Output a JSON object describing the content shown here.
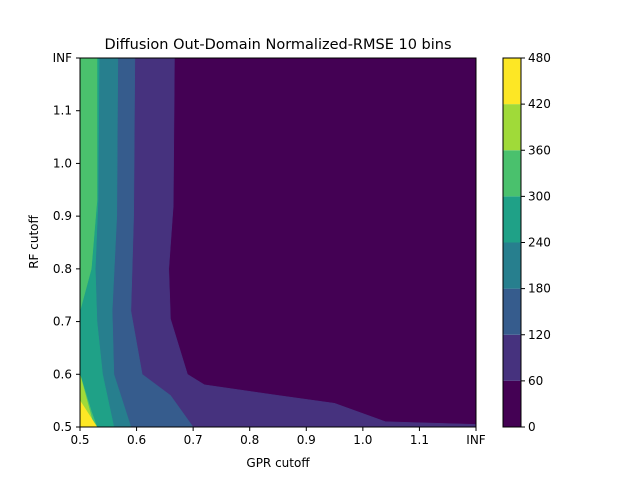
{
  "chart_data": {
    "type": "contourf",
    "title": "Diffusion Out-Domain Normalized-RMSE 10 bins",
    "xlabel": "GPR cutoff",
    "ylabel": "RF cutoff",
    "x_ticks": [
      "0.5",
      "0.6",
      "0.7",
      "0.8",
      "0.9",
      "1.0",
      "1.1",
      "INF"
    ],
    "y_ticks": [
      "0.5",
      "0.6",
      "0.7",
      "0.8",
      "0.9",
      "1.0",
      "1.1",
      "INF"
    ],
    "x_range": [
      0.5,
      1.2
    ],
    "y_range": [
      0.5,
      1.2
    ],
    "levels": [
      0,
      60,
      120,
      180,
      240,
      300,
      360,
      420,
      480
    ],
    "colorbar_ticks": [
      "0",
      "60",
      "120",
      "180",
      "240",
      "300",
      "360",
      "420",
      "480"
    ],
    "level_colors": [
      "#440154",
      "#46327e",
      "#365c8d",
      "#277f8e",
      "#1fa187",
      "#4ac16d",
      "#a0da39",
      "#fde725"
    ],
    "regions": [
      {
        "level_range": [
          0,
          60
        ],
        "boundary": [
          [
            0.955,
            1.2
          ],
          [
            0.955,
            0.905
          ],
          [
            0.92,
            0.8
          ],
          [
            0.938,
            0.7
          ],
          [
            0.98,
            0.635
          ],
          [
            1.1,
            0.635
          ],
          [
            1.2,
            0.61
          ],
          [
            1.2,
            1.2
          ]
        ]
      },
      {
        "level_range": [
          60,
          120
        ],
        "boundary": [
          [
            0.667,
            1.2
          ],
          [
            0.665,
            0.92
          ],
          [
            0.657,
            0.8
          ],
          [
            0.66,
            0.705
          ],
          [
            0.69,
            0.6
          ],
          [
            0.72,
            0.58
          ],
          [
            0.85,
            0.56
          ],
          [
            0.95,
            0.545
          ],
          [
            1.04,
            0.51
          ],
          [
            1.2,
            0.505
          ],
          [
            1.2,
            0.5
          ],
          [
            0.67,
            0.5
          ],
          [
            0.67,
            0.5
          ]
        ]
      },
      {
        "level_range": [
          120,
          180
        ],
        "boundary": [
          [
            0.597,
            1.2
          ],
          [
            0.595,
            0.9
          ],
          [
            0.59,
            0.72
          ],
          [
            0.61,
            0.6
          ],
          [
            0.66,
            0.56
          ],
          [
            0.7,
            0.5
          ],
          [
            0.67,
            0.5
          ],
          [
            0.67,
            0.5
          ]
        ]
      },
      {
        "level_range": [
          180,
          240
        ],
        "boundary": [
          [
            0.567,
            1.2
          ],
          [
            0.565,
            0.9
          ],
          [
            0.557,
            0.72
          ],
          [
            0.56,
            0.6
          ],
          [
            0.59,
            0.5
          ],
          [
            0.67,
            0.5
          ]
        ]
      },
      {
        "level_range": [
          240,
          300
        ],
        "boundary": [
          [
            0.534,
            1.2
          ],
          [
            0.532,
            0.93
          ],
          [
            0.527,
            0.8
          ],
          [
            0.53,
            0.7
          ],
          [
            0.54,
            0.6
          ],
          [
            0.56,
            0.5
          ],
          [
            0.59,
            0.5
          ]
        ]
      },
      {
        "level_range": [
          300,
          360
        ],
        "boundary": [
          [
            0.53,
            1.2
          ],
          [
            0.53,
            0.93
          ],
          [
            0.52,
            0.8
          ],
          [
            0.5,
            0.72
          ],
          [
            0.5,
            0.6
          ],
          [
            0.52,
            0.53
          ],
          [
            0.53,
            0.5
          ],
          [
            0.56,
            0.5
          ]
        ]
      },
      {
        "level_range": [
          360,
          420
        ],
        "boundary": [
          [
            0.5,
            1.2
          ],
          [
            0.5,
            1.2
          ],
          [
            0.5,
            0.6
          ],
          [
            0.525,
            0.5
          ]
        ]
      },
      {
        "level_range": [
          420,
          480
        ],
        "boundary": [
          [
            0.5,
            0.55
          ],
          [
            0.53,
            0.5
          ],
          [
            0.5,
            0.5
          ]
        ]
      }
    ]
  }
}
